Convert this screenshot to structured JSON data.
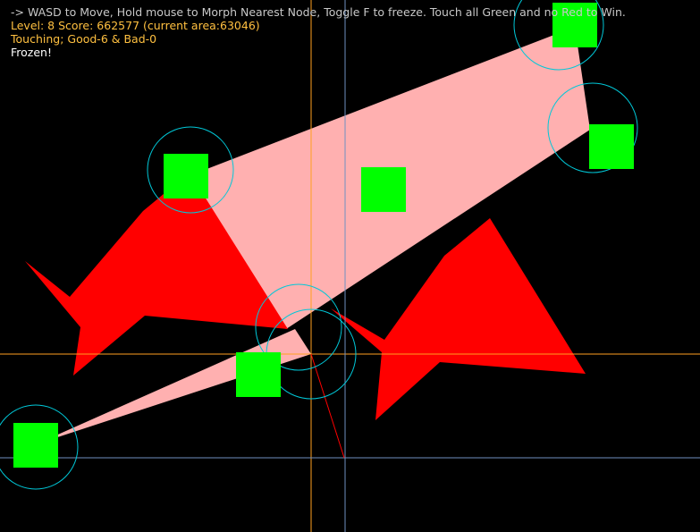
{
  "hud": {
    "instructions": "-> WASD to Move, Hold mouse to Morph Nearest Node, Toggle F to freeze. Touch all Green and no Red to Win.",
    "level_line": "Level: 8 Score: 662577 (current area:63046)",
    "touching_line": "Touching; Good-6 & Bad-0",
    "status": "Frozen!"
  },
  "game": {
    "level": 8,
    "score": 662577,
    "current_area": 63046,
    "touching_good": 6,
    "touching_bad": 0,
    "frozen": true
  },
  "colors": {
    "background": "#000000",
    "good": "#00ff00",
    "bad": "#ff0000",
    "player_shape": "#ffb0b0",
    "node_ring": "#00c8d8",
    "crosshair_orange": "#ffa020",
    "crosshair_blue": "#7090c0",
    "hud_text": "#c8c8c8",
    "hud_yellow": "#ffc040",
    "hud_white": "#ffffff"
  }
}
